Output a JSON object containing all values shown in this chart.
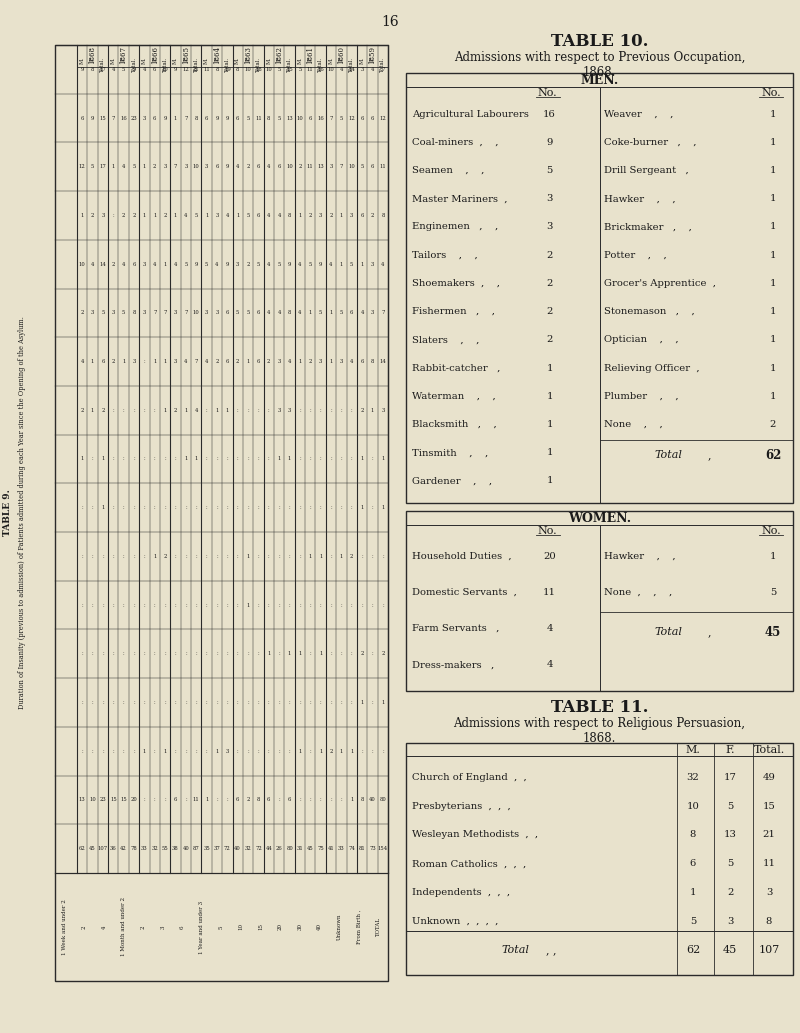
{
  "page_number": "16",
  "bg_color": "#e8e2cc",
  "table9_title": "TABLE 9.",
  "table9_subtitle": "Duration of Insanity (previous to admission) of Patients admitted during each Year since the Opening of the Asylum.",
  "table10_title": "TABLE 10.",
  "table10_subtitle": "Admissions with respect to Previous Occupation,\n1868.",
  "table11_title": "TABLE 11.",
  "table11_subtitle": "Admissions with respect to Religious Persuasion,\n1868.",
  "men_left": [
    [
      "Agricultural Labourers",
      16
    ],
    [
      "Coal-miners  ,    ,",
      9
    ],
    [
      "Seamen    ,    ,",
      5
    ],
    [
      "Master Mariners  ,",
      3
    ],
    [
      "Enginemen   ,    ,",
      3
    ],
    [
      "Tailors    ,    ,",
      2
    ],
    [
      "Shoemakers  ,    ,",
      2
    ],
    [
      "Fishermen   ,    ,",
      2
    ],
    [
      "Slaters    ,    ,",
      2
    ],
    [
      "Rabbit-catcher   ,",
      1
    ],
    [
      "Waterman    ,    ,",
      1
    ],
    [
      "Blacksmith   ,    ,",
      1
    ],
    [
      "Tinsmith    ,    ,",
      1
    ],
    [
      "Gardener    ,    ,",
      1
    ]
  ],
  "men_right": [
    [
      "Weaver    ,    ,",
      1
    ],
    [
      "Coke-burner   ,    ,",
      1
    ],
    [
      "Drill Sergeant   ,",
      1
    ],
    [
      "Hawker    ,    ,",
      1
    ],
    [
      "Brickmaker   ,    ,",
      1
    ],
    [
      "Potter    ,    ,",
      1
    ],
    [
      "Grocer's Apprentice  ,",
      1
    ],
    [
      "Stonemason   ,    ,",
      1
    ],
    [
      "Optician    ,    ,",
      1
    ],
    [
      "Relieving Officer  ,",
      1
    ],
    [
      "Plumber    ,    ,",
      1
    ],
    [
      "None    ,    ,",
      2
    ]
  ],
  "men_total": 62,
  "women_left": [
    [
      "Household Duties  ,",
      20
    ],
    [
      "Domestic Servants  ,",
      11
    ],
    [
      "Farm Servants   ,",
      4
    ],
    [
      "Dress-makers   ,",
      4
    ]
  ],
  "women_right": [
    [
      "Hawker    ,    ,",
      1
    ],
    [
      "None  ,    ,    ,",
      5
    ]
  ],
  "women_total": 45,
  "religion_rows": [
    [
      "Church of England  ,  ,",
      32,
      17,
      49
    ],
    [
      "Presbyterians  ,  ,  ,",
      10,
      5,
      15
    ],
    [
      "Wesleyan Methodists  ,  ,",
      8,
      13,
      21
    ],
    [
      "Roman Catholics  ,  ,  ,",
      6,
      5,
      11
    ],
    [
      "Independents  ,  ,  ,",
      1,
      2,
      3
    ],
    [
      "Unknown  ,  ,  ,  ,",
      5,
      3,
      8
    ]
  ],
  "religion_total": [
    62,
    45,
    107
  ],
  "years_order": [
    "1868",
    "1867",
    "1866",
    "1865",
    "1864",
    "1863",
    "1862",
    "1861",
    "1860",
    "1859"
  ],
  "duration_rows": [
    "1 Week and under 2",
    "2",
    "4",
    "1 Month and under 2",
    "2",
    "3",
    "6",
    "1 Year and under 3",
    "5",
    "10",
    "15",
    "20",
    "30",
    "40",
    "Unknown",
    "From Birth ,",
    "TOTAL"
  ],
  "t9_mft": {
    "1868": {
      "M": [
        9,
        6,
        12,
        1,
        10,
        2,
        4,
        2,
        1,
        null,
        null,
        null,
        null,
        null,
        null,
        13,
        62
      ],
      "F": [
        8,
        9,
        5,
        2,
        4,
        3,
        1,
        1,
        null,
        null,
        null,
        null,
        null,
        null,
        null,
        10,
        45
      ],
      "Total": [
        17,
        15,
        17,
        3,
        14,
        5,
        6,
        2,
        1,
        1,
        null,
        null,
        null,
        null,
        null,
        23,
        107
      ]
    },
    "1867": {
      "M": [
        4,
        7,
        1,
        null,
        2,
        3,
        2,
        null,
        null,
        null,
        null,
        null,
        null,
        null,
        null,
        15,
        36
      ],
      "F": [
        5,
        16,
        4,
        2,
        4,
        5,
        1,
        null,
        null,
        null,
        null,
        null,
        null,
        null,
        null,
        15,
        42
      ],
      "Total": [
        9,
        23,
        5,
        2,
        6,
        8,
        3,
        null,
        null,
        null,
        null,
        null,
        null,
        null,
        null,
        20,
        78
      ]
    },
    "1866": {
      "M": [
        4,
        3,
        1,
        1,
        3,
        3,
        null,
        null,
        null,
        null,
        null,
        null,
        null,
        null,
        1,
        null,
        33
      ],
      "F": [
        6,
        6,
        2,
        1,
        4,
        7,
        1,
        null,
        null,
        null,
        1,
        null,
        null,
        null,
        null,
        null,
        32
      ],
      "Total": [
        10,
        9,
        3,
        2,
        1,
        7,
        1,
        1,
        null,
        null,
        2,
        null,
        null,
        null,
        1,
        null,
        55
      ]
    },
    "1865": {
      "M": [
        9,
        1,
        7,
        1,
        4,
        3,
        3,
        2,
        null,
        null,
        null,
        null,
        null,
        null,
        null,
        6,
        38
      ],
      "F": [
        12,
        7,
        3,
        4,
        5,
        7,
        4,
        1,
        1,
        null,
        null,
        null,
        null,
        null,
        null,
        null,
        40
      ],
      "Total": [
        21,
        8,
        10,
        5,
        9,
        10,
        7,
        4,
        1,
        null,
        null,
        null,
        null,
        null,
        null,
        11,
        87
      ]
    },
    "1864": {
      "M": [
        11,
        6,
        3,
        1,
        5,
        3,
        4,
        null,
        null,
        null,
        null,
        null,
        null,
        null,
        null,
        1,
        35
      ],
      "F": [
        8,
        9,
        6,
        3,
        4,
        3,
        2,
        1,
        null,
        null,
        null,
        null,
        null,
        null,
        1,
        null,
        37
      ],
      "Total": [
        19,
        9,
        9,
        4,
        9,
        6,
        6,
        1,
        null,
        null,
        null,
        null,
        null,
        null,
        3,
        null,
        72
      ]
    },
    "1863": {
      "M": [
        8,
        6,
        4,
        1,
        3,
        5,
        2,
        null,
        null,
        null,
        null,
        null,
        null,
        null,
        null,
        6,
        40
      ],
      "F": [
        10,
        5,
        2,
        5,
        2,
        5,
        1,
        null,
        null,
        null,
        1,
        1,
        null,
        null,
        null,
        2,
        32
      ],
      "Total": [
        18,
        11,
        6,
        6,
        5,
        6,
        6,
        null,
        null,
        null,
        null,
        null,
        null,
        null,
        null,
        8,
        72
      ]
    },
    "1862": {
      "M": [
        10,
        8,
        4,
        4,
        4,
        4,
        2,
        null,
        null,
        null,
        null,
        null,
        1,
        null,
        null,
        6,
        44
      ],
      "F": [
        5,
        5,
        6,
        4,
        5,
        4,
        3,
        3,
        1,
        null,
        null,
        null,
        null,
        null,
        null,
        null,
        26
      ],
      "Total": [
        15,
        13,
        10,
        8,
        9,
        8,
        4,
        3,
        1,
        null,
        null,
        null,
        1,
        null,
        null,
        6,
        80
      ]
    },
    "1861": {
      "M": [
        5,
        10,
        2,
        1,
        4,
        4,
        1,
        null,
        null,
        null,
        null,
        null,
        1,
        null,
        1,
        null,
        31
      ],
      "F": [
        11,
        6,
        11,
        2,
        5,
        1,
        2,
        null,
        null,
        null,
        1,
        null,
        null,
        null,
        null,
        null,
        45
      ],
      "Total": [
        16,
        16,
        13,
        3,
        9,
        5,
        3,
        null,
        null,
        null,
        1,
        null,
        1,
        null,
        1,
        null,
        75
      ]
    },
    "1860": {
      "M": [
        10,
        7,
        3,
        2,
        4,
        1,
        1,
        null,
        null,
        null,
        null,
        null,
        null,
        null,
        2,
        null,
        41
      ],
      "F": [
        4,
        5,
        7,
        1,
        1,
        5,
        3,
        null,
        null,
        null,
        1,
        null,
        null,
        null,
        1,
        null,
        33
      ],
      "Total": [
        14,
        12,
        10,
        3,
        5,
        6,
        4,
        null,
        null,
        null,
        2,
        null,
        null,
        null,
        1,
        1,
        74
      ]
    },
    "1859": {
      "M": [
        3,
        6,
        5,
        6,
        1,
        4,
        6,
        2,
        1,
        1,
        null,
        null,
        2,
        1,
        null,
        8,
        81
      ],
      "F": [
        4,
        6,
        6,
        2,
        3,
        3,
        8,
        1,
        null,
        null,
        null,
        null,
        null,
        null,
        null,
        40,
        73
      ],
      "Total": [
        7,
        12,
        11,
        8,
        4,
        7,
        14,
        3,
        1,
        1,
        null,
        null,
        2,
        1,
        null,
        80,
        154
      ]
    }
  }
}
